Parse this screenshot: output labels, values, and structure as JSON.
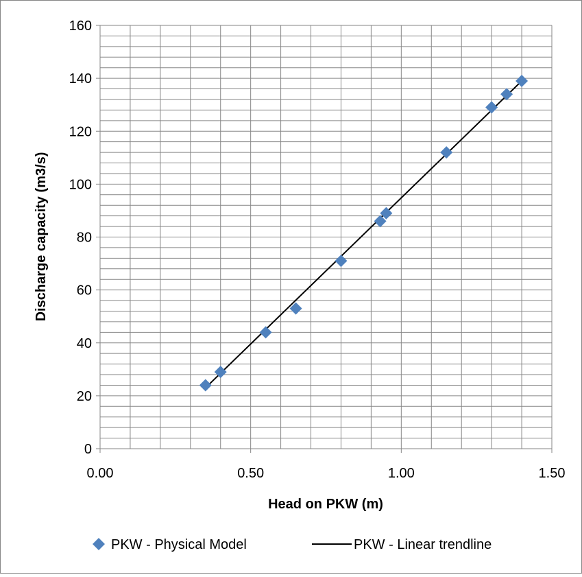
{
  "chart_data": {
    "type": "scatter",
    "title": "",
    "xlabel": "Head on PKW (m)",
    "ylabel": "Discharge capacity (m3/s)",
    "xlim": [
      0,
      1.5
    ],
    "ylim": [
      0,
      160
    ],
    "x_major_ticks": [
      0,
      0.5,
      1.0,
      1.5
    ],
    "x_tick_labels": [
      "0.00",
      "0.50",
      "1.00",
      "1.50"
    ],
    "y_major_ticks": [
      0,
      20,
      40,
      60,
      80,
      100,
      120,
      140,
      160
    ],
    "y_tick_labels": [
      "0",
      "20",
      "40",
      "60",
      "80",
      "100",
      "120",
      "140",
      "160"
    ],
    "x_minor_step": 0.1,
    "y_minor_step": 4,
    "grid": true,
    "legend_position": "bottom",
    "series": [
      {
        "name": "PKW - Physical Model",
        "kind": "scatter",
        "marker": "diamond",
        "color": "#4f81bd",
        "x": [
          0.35,
          0.4,
          0.55,
          0.65,
          0.8,
          0.93,
          0.95,
          1.15,
          1.3,
          1.35,
          1.4
        ],
        "y": [
          24,
          29,
          44,
          53,
          71,
          86,
          89,
          112,
          129,
          134,
          139
        ]
      },
      {
        "name": "PKW - Linear trendline",
        "kind": "line",
        "color": "#000000",
        "x": [
          0.35,
          1.4
        ],
        "y": [
          23,
          139
        ]
      }
    ]
  }
}
